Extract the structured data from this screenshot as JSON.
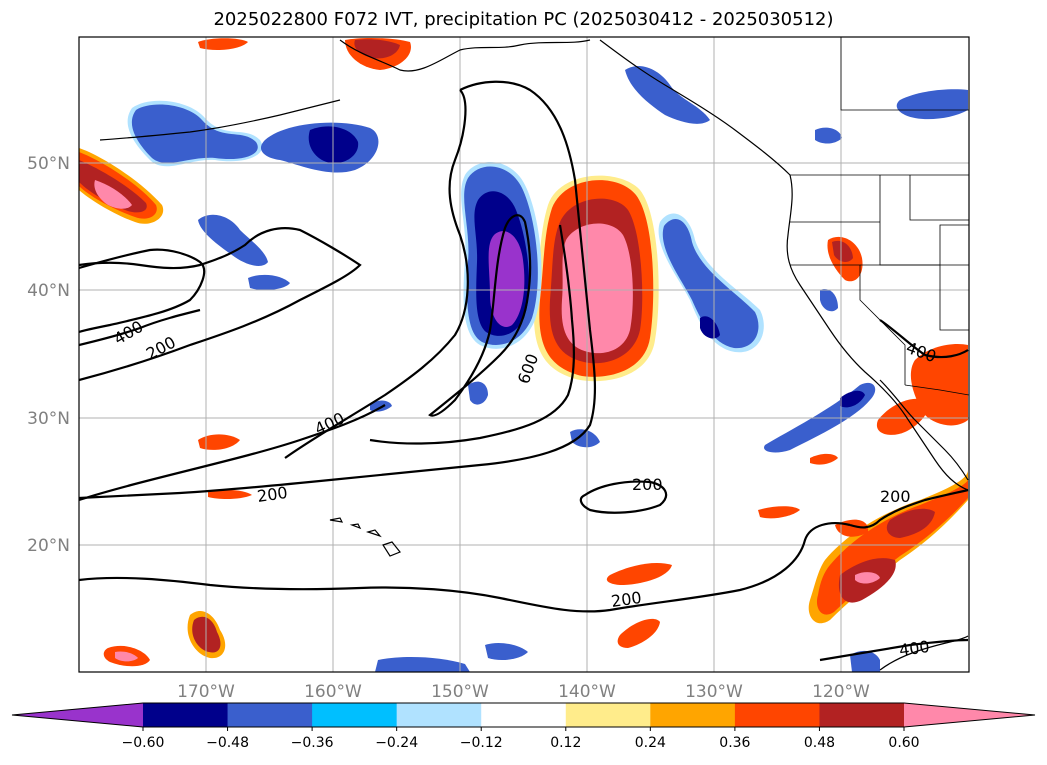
{
  "title": "2025022800 F072 IVT, precipitation PC (2025030412 - 2025030512)",
  "longitude_labels": [
    "170°W",
    "160°W",
    "150°W",
    "140°W",
    "130°W",
    "120°W"
  ],
  "latitude_labels": [
    "50°N",
    "40°N",
    "30°N",
    "20°N"
  ],
  "colorbar": {
    "tick_labels": [
      "−0.60",
      "−0.48",
      "−0.36",
      "−0.24",
      "−0.12",
      "0.12",
      "0.24",
      "0.36",
      "0.48",
      "0.60"
    ],
    "colors": [
      "#9933cc",
      "#00008b",
      "#3a5fcd",
      "#00bfff",
      "#b0e2ff",
      "#ffffff",
      "#ffec8b",
      "#ffa500",
      "#ff4500",
      "#b22222",
      "#ff88aa"
    ]
  },
  "contour_labels": {
    "c400_west": "400",
    "c200_west": "200",
    "c600": "600",
    "c400_mid": "400",
    "c200_mid": "200",
    "c200_center": "200",
    "c200_south": "200",
    "c200_east": "200",
    "c400_southeast": "400",
    "c400_coast": "400"
  },
  "colors": {
    "grid": "#b0b0b0",
    "axis_label": "#808080"
  }
}
